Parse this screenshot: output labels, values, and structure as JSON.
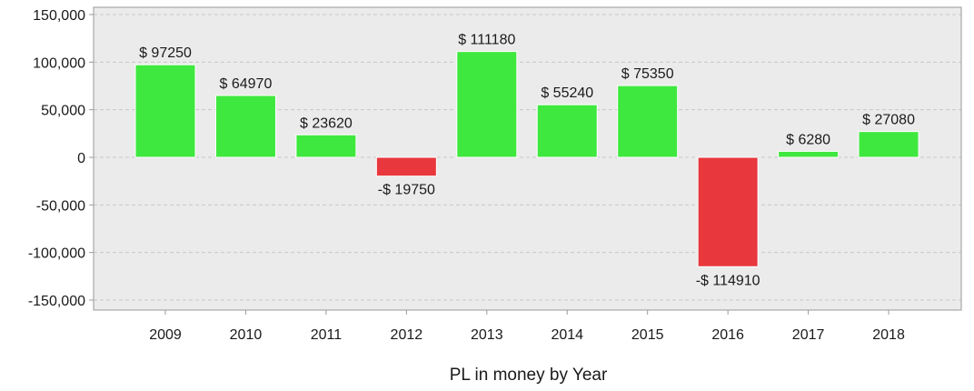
{
  "chart_data": {
    "type": "bar",
    "title": "",
    "xlabel": "PL in money by Year",
    "ylabel": "",
    "categories": [
      "2009",
      "2010",
      "2011",
      "2012",
      "2013",
      "2014",
      "2015",
      "2016",
      "2017",
      "2018"
    ],
    "values": [
      97250,
      64970,
      23620,
      -19750,
      111180,
      55240,
      75350,
      -114910,
      6280,
      27080
    ],
    "data_labels": [
      "$ 97250",
      "$ 64970",
      "$ 23620",
      "-$ 19750",
      "$ 111180",
      "$ 55240",
      "$ 75350",
      "-$ 114910",
      "$ 6280",
      "$ 27080"
    ],
    "ylim": [
      -150000,
      150000
    ],
    "yticks": [
      150000,
      100000,
      50000,
      0,
      -50000,
      -100000,
      -150000
    ],
    "ytick_labels": [
      "150,000",
      "100,000",
      "50,000",
      "0",
      "-50,000",
      "-100,000",
      "-150,000"
    ],
    "grid": true,
    "legend": false,
    "colors": {
      "positive": "#3fe83f",
      "negative": "#e8383d",
      "plot_background": "#ebebeb",
      "grid": "#c8c8c8",
      "frame": "#9a9a9a"
    }
  }
}
